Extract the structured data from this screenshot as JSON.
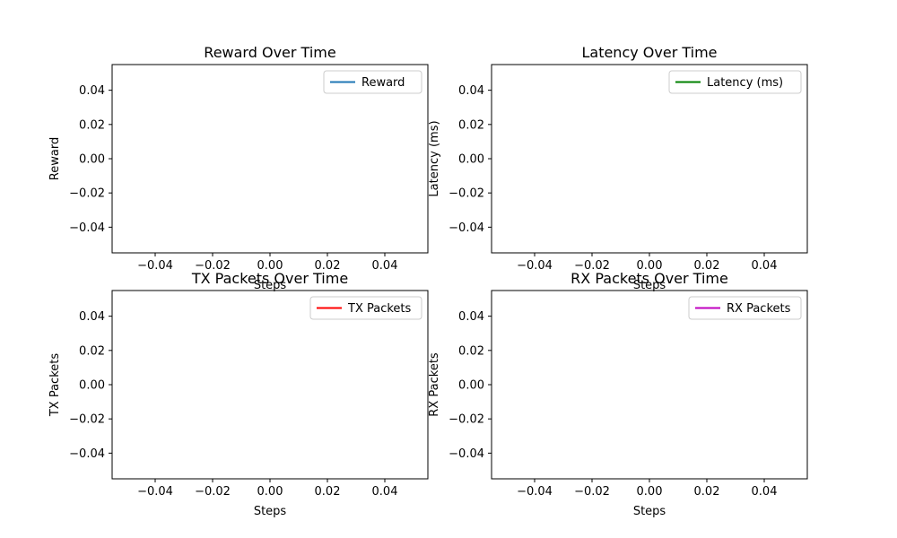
{
  "chart_data": [
    {
      "type": "line",
      "title": "Reward Over Time",
      "xlabel": "Steps",
      "ylabel": "Reward",
      "xlim": [
        -0.055,
        0.055
      ],
      "ylim": [
        -0.055,
        0.055
      ],
      "xticks": [
        "−0.04",
        "−0.02",
        "0.00",
        "0.02",
        "0.04"
      ],
      "yticks": [
        "0.04",
        "0.02",
        "0.00",
        "−0.02",
        "−0.04"
      ],
      "legend_position": "upper-right",
      "series": [
        {
          "name": "Reward",
          "color": "#1f77b4",
          "x": [],
          "y": []
        }
      ],
      "grid": false
    },
    {
      "type": "line",
      "title": "Latency Over Time",
      "xlabel": "Steps",
      "ylabel": "Latency (ms)",
      "xlim": [
        -0.055,
        0.055
      ],
      "ylim": [
        -0.055,
        0.055
      ],
      "xticks": [
        "−0.04",
        "−0.02",
        "0.00",
        "0.02",
        "0.04"
      ],
      "yticks": [
        "0.04",
        "0.02",
        "0.00",
        "−0.02",
        "−0.04"
      ],
      "legend_position": "upper-right",
      "series": [
        {
          "name": "Latency (ms)",
          "color": "#008000",
          "x": [],
          "y": []
        }
      ],
      "grid": false
    },
    {
      "type": "line",
      "title": "TX Packets Over Time",
      "xlabel": "Steps",
      "ylabel": "TX Packets",
      "xlim": [
        -0.055,
        0.055
      ],
      "ylim": [
        -0.055,
        0.055
      ],
      "xticks": [
        "−0.04",
        "−0.02",
        "0.00",
        "0.02",
        "0.04"
      ],
      "yticks": [
        "0.04",
        "0.02",
        "0.00",
        "−0.02",
        "−0.04"
      ],
      "legend_position": "upper-right",
      "series": [
        {
          "name": "TX Packets",
          "color": "#ff0000",
          "x": [],
          "y": []
        }
      ],
      "grid": false
    },
    {
      "type": "line",
      "title": "RX Packets Over Time",
      "xlabel": "Steps",
      "ylabel": "RX Packets",
      "xlim": [
        -0.055,
        0.055
      ],
      "ylim": [
        -0.055,
        0.055
      ],
      "xticks": [
        "−0.04",
        "−0.02",
        "0.00",
        "0.02",
        "0.04"
      ],
      "yticks": [
        "0.04",
        "0.02",
        "0.00",
        "−0.02",
        "−0.04"
      ],
      "legend_position": "upper-right",
      "series": [
        {
          "name": "RX Packets",
          "color": "#bf00bf",
          "x": [],
          "y": []
        }
      ],
      "grid": false
    }
  ]
}
